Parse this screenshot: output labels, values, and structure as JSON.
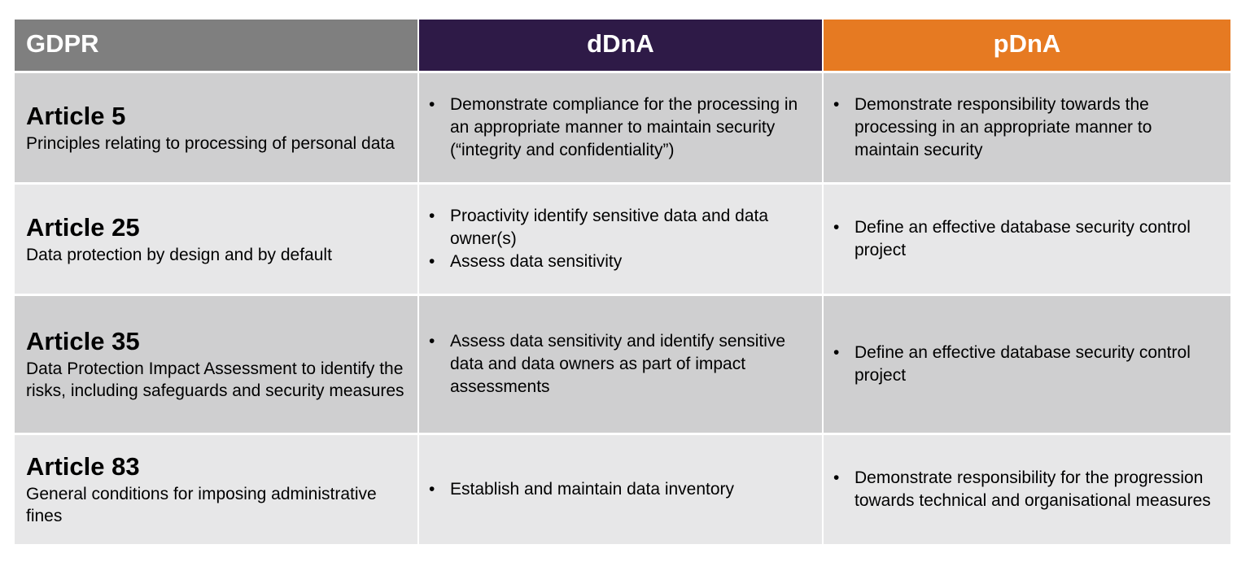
{
  "headers": {
    "gdpr": "GDPR",
    "ddna": "dDnA",
    "pdna": "pDnA"
  },
  "colors": {
    "gdpr_header": "#7f7f7f",
    "ddna_header": "#2e1a47",
    "pdna_header": "#e67a22",
    "row_dark": "#cfcfd0",
    "row_light": "#e7e7e8"
  },
  "rows": [
    {
      "title": "Article 5",
      "subtitle": "Principles relating to processing of personal data",
      "ddna": [
        "Demonstrate compliance for the processing in an appropriate manner to maintain security (“integrity and confidentiality”)"
      ],
      "pdna": [
        "Demonstrate responsibility towards the processing in an appropriate manner to maintain security"
      ]
    },
    {
      "title": "Article 25",
      "subtitle": "Data protection by design and by default",
      "ddna": [
        "Proactivity identify sensitive data and data owner(s)",
        "Assess data sensitivity"
      ],
      "pdna": [
        "Define an effective database security control project"
      ]
    },
    {
      "title": "Article 35",
      "subtitle": "Data Protection Impact Assessment to identify the risks, including safeguards and security measures",
      "ddna": [
        "Assess data sensitivity and identify sensitive data and data owners as part of impact assessments"
      ],
      "pdna": [
        "Define an effective database security control project"
      ]
    },
    {
      "title": "Article 83",
      "subtitle": "General conditions for imposing administrative fines",
      "ddna": [
        "Establish and maintain data inventory"
      ],
      "pdna": [
        "Demonstrate responsibility for the progression towards technical and organisational measures"
      ]
    }
  ],
  "bullet": "•"
}
